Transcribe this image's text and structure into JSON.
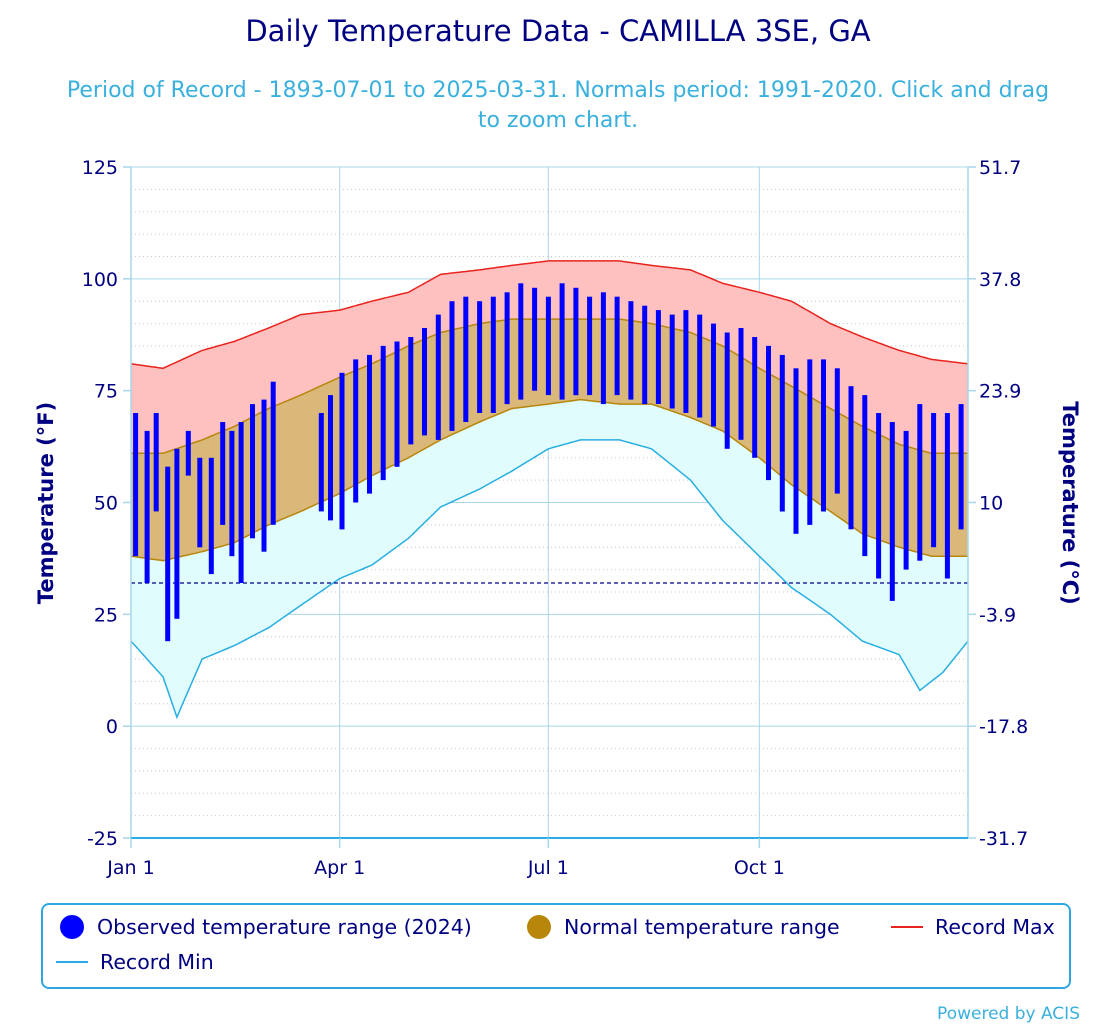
{
  "title": "Daily Temperature Data - CAMILLA 3SE, GA",
  "subtitle": "Period of Record - 1893-07-01 to 2025-03-31. Normals period: 1991-2020. Click and drag to zoom chart.",
  "credit": "Powered by ACIS",
  "colors": {
    "observed": "#0000ff",
    "normal": "#b8860b",
    "normal_fill": "#d9b87a",
    "record_max": "#e8231d",
    "record_max_fill": "#ffc0c0",
    "record_min": "#29aee3",
    "record_min_fill": "#e0fcfc",
    "axis_text": "#000080",
    "gridline": "#a9d6ea",
    "freezing_line": "#00008b"
  },
  "legend": [
    {
      "label": "Observed temperature range (2024)",
      "marker": "dot",
      "color": "#0000ff"
    },
    {
      "label": "Normal temperature range",
      "marker": "dot",
      "color": "#b8860b"
    },
    {
      "label": "Record Max",
      "marker": "line",
      "color": "#e8231d"
    },
    {
      "label": "Record Min",
      "marker": "line",
      "color": "#29aee3"
    }
  ],
  "chart_data": {
    "type": "area",
    "title": "Daily Temperature Data - CAMILLA 3SE, GA",
    "subtitle": "Period of Record - 1893-07-01 to 2025-03-31. Normals period: 1991-2020. Click and drag to zoom chart.",
    "ylabel": "Temperature (°F)",
    "ylabel_right": "Temperature (°C)",
    "ylim": [
      -25,
      125
    ],
    "yticks": [
      -25,
      0,
      25,
      50,
      75,
      100,
      125
    ],
    "yticks_right": [
      "-31.7",
      "-17.8",
      "-3.9",
      "10",
      "23.9",
      "37.8",
      "51.7"
    ],
    "x_tick_labels": [
      "Jan 1",
      "Apr 1",
      "Jul 1",
      "Oct 1"
    ],
    "x_tick_dates": [
      "2024-01-01",
      "2024-04-01",
      "2024-07-01",
      "2024-10-01"
    ],
    "xlim": [
      "2024-01-01",
      "2024-12-31"
    ],
    "freezing_line": 32,
    "grid": true,
    "legend_position": "bottom",
    "series": [
      {
        "name": "Record Max",
        "kind": "line",
        "points": [
          [
            "2024-01-01",
            81
          ],
          [
            "2024-01-15",
            80
          ],
          [
            "2024-02-01",
            84
          ],
          [
            "2024-02-15",
            86
          ],
          [
            "2024-03-01",
            89
          ],
          [
            "2024-03-15",
            92
          ],
          [
            "2024-04-01",
            93
          ],
          [
            "2024-04-15",
            95
          ],
          [
            "2024-05-01",
            97
          ],
          [
            "2024-05-15",
            101
          ],
          [
            "2024-06-01",
            102
          ],
          [
            "2024-06-15",
            103
          ],
          [
            "2024-07-01",
            104
          ],
          [
            "2024-07-15",
            104
          ],
          [
            "2024-08-01",
            104
          ],
          [
            "2024-08-15",
            103
          ],
          [
            "2024-09-01",
            102
          ],
          [
            "2024-09-15",
            99
          ],
          [
            "2024-10-01",
            97
          ],
          [
            "2024-10-15",
            95
          ],
          [
            "2024-11-01",
            90
          ],
          [
            "2024-11-15",
            87
          ],
          [
            "2024-12-01",
            84
          ],
          [
            "2024-12-15",
            82
          ],
          [
            "2024-12-31",
            81
          ]
        ]
      },
      {
        "name": "Record Min",
        "kind": "line",
        "points": [
          [
            "2024-01-01",
            19
          ],
          [
            "2024-01-15",
            11
          ],
          [
            "2024-01-21",
            2
          ],
          [
            "2024-02-01",
            15
          ],
          [
            "2024-02-15",
            18
          ],
          [
            "2024-03-01",
            22
          ],
          [
            "2024-03-15",
            27
          ],
          [
            "2024-04-01",
            33
          ],
          [
            "2024-04-15",
            36
          ],
          [
            "2024-05-01",
            42
          ],
          [
            "2024-05-15",
            49
          ],
          [
            "2024-06-01",
            53
          ],
          [
            "2024-06-15",
            57
          ],
          [
            "2024-07-01",
            62
          ],
          [
            "2024-07-15",
            64
          ],
          [
            "2024-08-01",
            64
          ],
          [
            "2024-08-15",
            62
          ],
          [
            "2024-09-01",
            55
          ],
          [
            "2024-09-15",
            46
          ],
          [
            "2024-10-01",
            38
          ],
          [
            "2024-10-15",
            31
          ],
          [
            "2024-11-01",
            25
          ],
          [
            "2024-11-15",
            19
          ],
          [
            "2024-12-01",
            16
          ],
          [
            "2024-12-10",
            8
          ],
          [
            "2024-12-20",
            12
          ],
          [
            "2024-12-31",
            19
          ]
        ]
      },
      {
        "name": "Normal temperature range",
        "kind": "range",
        "points": [
          [
            "2024-01-01",
            38,
            61
          ],
          [
            "2024-01-15",
            37,
            61
          ],
          [
            "2024-02-01",
            39,
            64
          ],
          [
            "2024-02-15",
            41,
            67
          ],
          [
            "2024-03-01",
            45,
            71
          ],
          [
            "2024-03-15",
            48,
            74
          ],
          [
            "2024-04-01",
            52,
            78
          ],
          [
            "2024-04-15",
            56,
            81
          ],
          [
            "2024-05-01",
            60,
            85
          ],
          [
            "2024-05-15",
            64,
            88
          ],
          [
            "2024-06-01",
            68,
            90
          ],
          [
            "2024-06-15",
            71,
            91
          ],
          [
            "2024-07-01",
            72,
            91
          ],
          [
            "2024-07-15",
            73,
            91
          ],
          [
            "2024-08-01",
            72,
            91
          ],
          [
            "2024-08-15",
            72,
            90
          ],
          [
            "2024-09-01",
            69,
            88
          ],
          [
            "2024-09-15",
            66,
            85
          ],
          [
            "2024-10-01",
            60,
            80
          ],
          [
            "2024-10-15",
            54,
            76
          ],
          [
            "2024-11-01",
            48,
            71
          ],
          [
            "2024-11-15",
            43,
            67
          ],
          [
            "2024-12-01",
            40,
            63
          ],
          [
            "2024-12-15",
            38,
            61
          ],
          [
            "2024-12-31",
            38,
            61
          ]
        ]
      },
      {
        "name": "Observed temperature range (2024)",
        "kind": "range",
        "points": [
          [
            "2024-01-03",
            38,
            70
          ],
          [
            "2024-01-08",
            32,
            66
          ],
          [
            "2024-01-12",
            48,
            70
          ],
          [
            "2024-01-17",
            19,
            58
          ],
          [
            "2024-01-21",
            24,
            62
          ],
          [
            "2024-01-26",
            56,
            66
          ],
          [
            "2024-01-31",
            40,
            60
          ],
          [
            "2024-02-05",
            34,
            60
          ],
          [
            "2024-02-10",
            45,
            68
          ],
          [
            "2024-02-14",
            38,
            66
          ],
          [
            "2024-02-18",
            32,
            68
          ],
          [
            "2024-02-23",
            42,
            72
          ],
          [
            "2024-02-28",
            39,
            73
          ],
          [
            "2024-03-03",
            45,
            77
          ],
          [
            "2024-03-24",
            48,
            70
          ],
          [
            "2024-03-28",
            46,
            74
          ],
          [
            "2024-04-02",
            44,
            79
          ],
          [
            "2024-04-08",
            50,
            82
          ],
          [
            "2024-04-14",
            52,
            83
          ],
          [
            "2024-04-20",
            55,
            85
          ],
          [
            "2024-04-26",
            58,
            86
          ],
          [
            "2024-05-02",
            63,
            87
          ],
          [
            "2024-05-08",
            65,
            89
          ],
          [
            "2024-05-14",
            64,
            92
          ],
          [
            "2024-05-20",
            66,
            95
          ],
          [
            "2024-05-26",
            68,
            96
          ],
          [
            "2024-06-01",
            70,
            95
          ],
          [
            "2024-06-07",
            70,
            96
          ],
          [
            "2024-06-13",
            72,
            97
          ],
          [
            "2024-06-19",
            73,
            99
          ],
          [
            "2024-06-25",
            75,
            98
          ],
          [
            "2024-07-01",
            74,
            96
          ],
          [
            "2024-07-07",
            73,
            99
          ],
          [
            "2024-07-13",
            74,
            98
          ],
          [
            "2024-07-19",
            74,
            96
          ],
          [
            "2024-07-25",
            72,
            97
          ],
          [
            "2024-07-31",
            74,
            96
          ],
          [
            "2024-08-06",
            73,
            95
          ],
          [
            "2024-08-12",
            72,
            94
          ],
          [
            "2024-08-18",
            72,
            93
          ],
          [
            "2024-08-24",
            71,
            92
          ],
          [
            "2024-08-30",
            70,
            93
          ],
          [
            "2024-09-05",
            69,
            92
          ],
          [
            "2024-09-11",
            67,
            90
          ],
          [
            "2024-09-17",
            62,
            88
          ],
          [
            "2024-09-23",
            64,
            89
          ],
          [
            "2024-09-29",
            60,
            87
          ],
          [
            "2024-10-05",
            55,
            85
          ],
          [
            "2024-10-11",
            48,
            83
          ],
          [
            "2024-10-17",
            43,
            80
          ],
          [
            "2024-10-23",
            45,
            82
          ],
          [
            "2024-10-29",
            48,
            82
          ],
          [
            "2024-11-04",
            52,
            80
          ],
          [
            "2024-11-10",
            44,
            76
          ],
          [
            "2024-11-16",
            38,
            74
          ],
          [
            "2024-11-22",
            33,
            70
          ],
          [
            "2024-11-28",
            28,
            68
          ],
          [
            "2024-12-04",
            35,
            66
          ],
          [
            "2024-12-10",
            37,
            72
          ],
          [
            "2024-12-16",
            40,
            70
          ],
          [
            "2024-12-22",
            33,
            70
          ],
          [
            "2024-12-28",
            44,
            72
          ]
        ]
      }
    ]
  }
}
